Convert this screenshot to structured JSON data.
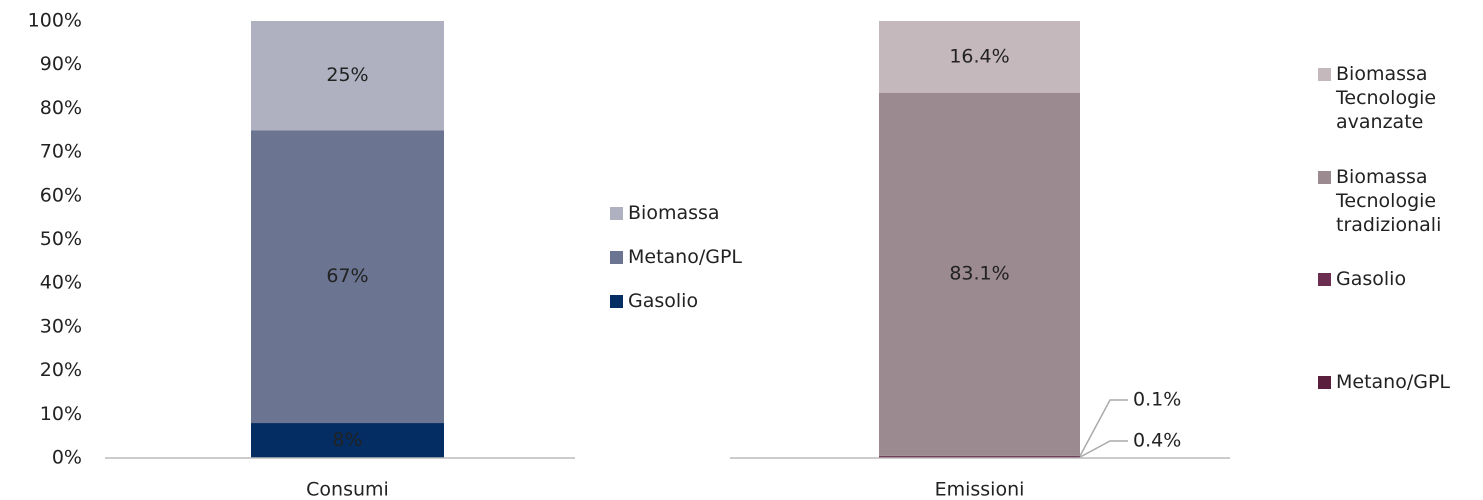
{
  "chart_data": [
    {
      "type": "bar",
      "stacked": true,
      "categories": [
        "Consumi"
      ],
      "series": [
        {
          "name": "Gasolio",
          "color": "#032d63",
          "values": [
            8
          ],
          "value_labels": [
            "8%"
          ]
        },
        {
          "name": "Metano/GPL",
          "color": "#6b7490",
          "values": [
            67
          ],
          "value_labels": [
            "67%"
          ]
        },
        {
          "name": "Biomassa",
          "color": "#afb1c0",
          "values": [
            25
          ],
          "value_labels": [
            "25%"
          ]
        }
      ],
      "ylim": [
        0,
        100
      ],
      "yticks": [
        {
          "value": 0,
          "label": "0%"
        },
        {
          "value": 10,
          "label": "10%"
        },
        {
          "value": 20,
          "label": "20%"
        },
        {
          "value": 30,
          "label": "30%"
        },
        {
          "value": 40,
          "label": "40%"
        },
        {
          "value": 50,
          "label": "50%"
        },
        {
          "value": 60,
          "label": "60%"
        },
        {
          "value": 70,
          "label": "70%"
        },
        {
          "value": 80,
          "label": "80%"
        },
        {
          "value": 90,
          "label": "90%"
        },
        {
          "value": 100,
          "label": "100%"
        }
      ]
    },
    {
      "type": "bar",
      "stacked": true,
      "categories": [
        "Emissioni"
      ],
      "series": [
        {
          "name": "Metano/GPL",
          "color": "#5a1f3c",
          "values": [
            0.4
          ],
          "value_labels": [
            "0.4%"
          ]
        },
        {
          "name": "Gasolio",
          "color": "#6b2d50",
          "values": [
            0.1
          ],
          "value_labels": [
            "0.1%"
          ]
        },
        {
          "name": "Biomassa Tecnologie tradizionali",
          "color": "#9b8a90",
          "values": [
            83.1
          ],
          "value_labels": [
            "83.1%"
          ]
        },
        {
          "name": "Biomassa Tecnologie avanzate",
          "color": "#c4b8bc",
          "values": [
            16.4
          ],
          "value_labels": [
            "16.4%"
          ]
        }
      ],
      "ylim": [
        0,
        100
      ]
    }
  ]
}
